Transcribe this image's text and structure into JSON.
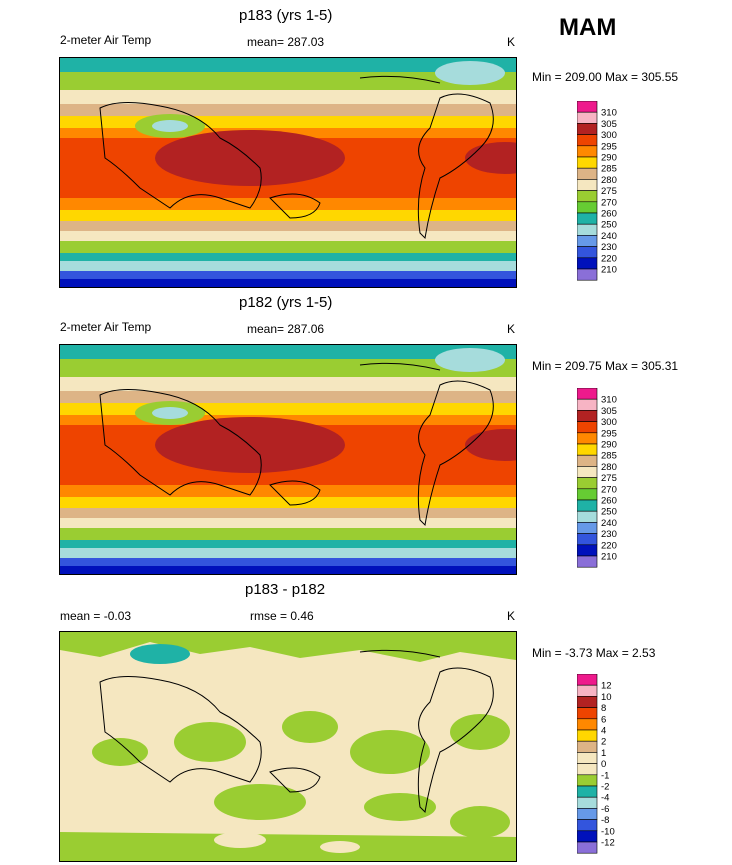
{
  "season": "MAM",
  "panels": [
    {
      "title": "p183 (yrs 1-5)",
      "left": "2-meter Air Temp",
      "center": "mean= 287.03",
      "units": "K",
      "minmax": "Min = 209.00 Max = 305.55",
      "scale": "abs"
    },
    {
      "title": "p182 (yrs 1-5)",
      "left": "2-meter Air Temp",
      "center": "mean= 287.06",
      "units": "K",
      "minmax": "Min = 209.75 Max = 305.31",
      "scale": "abs"
    },
    {
      "title": "p183 - p182",
      "left": "mean =  -0.03",
      "center": "rmse =   0.46",
      "units": "K",
      "minmax": "Min =  -3.73 Max =   2.53",
      "scale": "diff"
    }
  ],
  "chart_data": [
    {
      "type": "heatmap",
      "title": "p183 (yrs 1-5)",
      "variable": "2-meter Air Temp",
      "units": "K",
      "mean": 287.03,
      "min": 209.0,
      "max": 305.55,
      "legend_levels": [
        310,
        305,
        300,
        295,
        290,
        285,
        280,
        275,
        270,
        260,
        250,
        240,
        230,
        220,
        210
      ]
    },
    {
      "type": "heatmap",
      "title": "p182 (yrs 1-5)",
      "variable": "2-meter Air Temp",
      "units": "K",
      "mean": 287.06,
      "min": 209.75,
      "max": 305.31,
      "legend_levels": [
        310,
        305,
        300,
        295,
        290,
        285,
        280,
        275,
        270,
        260,
        250,
        240,
        230,
        220,
        210
      ]
    },
    {
      "type": "heatmap",
      "title": "p183 - p182",
      "units": "K",
      "mean": -0.03,
      "rmse": 0.46,
      "min": -3.73,
      "max": 2.53,
      "legend_levels": [
        12,
        10,
        8,
        6,
        4,
        2,
        1,
        0,
        -1,
        -2,
        -4,
        -6,
        -8,
        -10,
        -12
      ]
    }
  ],
  "scales": {
    "abs": {
      "labels": [
        "310",
        "305",
        "300",
        "295",
        "290",
        "285",
        "280",
        "275",
        "270",
        "260",
        "250",
        "240",
        "230",
        "220",
        "210"
      ],
      "colors": [
        "#ee1a8c",
        "#f7b4c4",
        "#b22222",
        "#ee4400",
        "#ff8800",
        "#ffd700",
        "#ddb486",
        "#f5e7c0",
        "#9acd32",
        "#66cc33",
        "#1fb2a6",
        "#a6dcdc",
        "#6699e8",
        "#3355dd",
        "#0011bb",
        "#8a6fd8"
      ]
    },
    "diff": {
      "labels": [
        "12",
        "10",
        "8",
        "6",
        "4",
        "2",
        "1",
        "0",
        "-1",
        "-2",
        "-4",
        "-6",
        "-8",
        "-10",
        "-12"
      ],
      "colors": [
        "#ee1a8c",
        "#f7b4c4",
        "#b22222",
        "#ee4400",
        "#ff8800",
        "#ffd700",
        "#ddb486",
        "#f5e7c0",
        "#f5e7c0",
        "#9acd32",
        "#1fb2a6",
        "#a6dcdc",
        "#6699e8",
        "#3355dd",
        "#0011bb",
        "#8a6fd8"
      ]
    }
  }
}
